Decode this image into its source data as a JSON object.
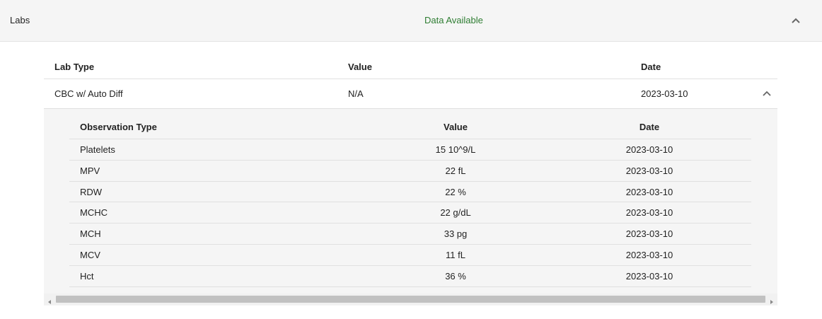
{
  "panel": {
    "title": "Labs",
    "status": "Data Available",
    "status_color": "#2e7d32",
    "toggle_icon": "chevron-up-icon"
  },
  "lab_table": {
    "headers": [
      "Lab Type",
      "Value",
      "Date"
    ],
    "rows": [
      {
        "lab_type": "CBC w/ Auto Diff",
        "value": "N/A",
        "date": "2023-03-10",
        "toggle_icon": "chevron-up-icon"
      }
    ]
  },
  "observations": {
    "headers": [
      "Observation Type",
      "Value",
      "Date"
    ],
    "rows": [
      {
        "type": "Platelets",
        "value": "15 10^9/L",
        "date": "2023-03-10"
      },
      {
        "type": "MPV",
        "value": "22 fL",
        "date": "2023-03-10"
      },
      {
        "type": "RDW",
        "value": "22 %",
        "date": "2023-03-10"
      },
      {
        "type": "MCHC",
        "value": "22 g/dL",
        "date": "2023-03-10"
      },
      {
        "type": "MCH",
        "value": "33 pg",
        "date": "2023-03-10"
      },
      {
        "type": "MCV",
        "value": "11 fL",
        "date": "2023-03-10"
      },
      {
        "type": "Hct",
        "value": "36 %",
        "date": "2023-03-10"
      }
    ]
  }
}
